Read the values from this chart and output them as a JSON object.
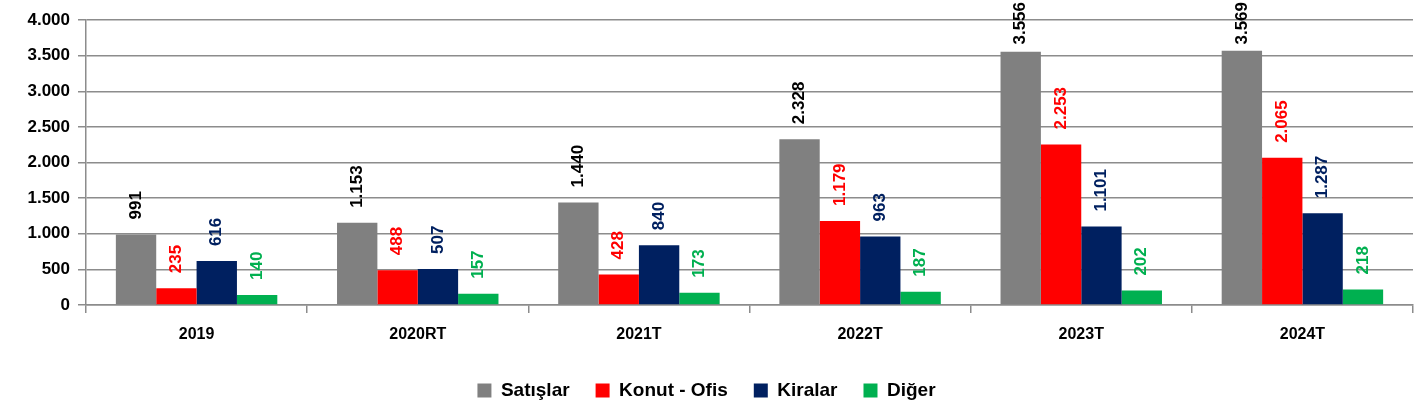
{
  "chart_data": {
    "type": "bar",
    "categories": [
      "2019",
      "2020RT",
      "2021T",
      "2022T",
      "2023T",
      "2024T"
    ],
    "series": [
      {
        "name": "Satışlar",
        "color": "#808080",
        "values": [
          991,
          1153,
          1440,
          2328,
          3556,
          3569
        ],
        "value_labels": [
          "991",
          "1.153",
          "1.440",
          "2.328",
          "3.556",
          "3.569"
        ]
      },
      {
        "name": "Konut - Ofis",
        "color": "#ff0000",
        "values": [
          235,
          488,
          428,
          1179,
          2253,
          2065
        ],
        "value_labels": [
          "235",
          "488",
          "428",
          "1.179",
          "2.253",
          "2.065"
        ]
      },
      {
        "name": "Kiralar",
        "color": "#002060",
        "values": [
          616,
          507,
          840,
          963,
          1101,
          1287
        ],
        "value_labels": [
          "616",
          "507",
          "840",
          "963",
          "1.101",
          "1.287"
        ]
      },
      {
        "name": "Diğer",
        "color": "#00b050",
        "values": [
          140,
          157,
          173,
          187,
          202,
          218
        ],
        "value_labels": [
          "140",
          "157",
          "173",
          "187",
          "202",
          "218"
        ]
      }
    ],
    "ylim": [
      0,
      4000
    ],
    "yticks": [
      0,
      500,
      {
        "value": 1000,
        "label": "1.000"
      },
      {
        "value": 1500,
        "label": "1.500"
      },
      {
        "value": 2000,
        "label": "2.000"
      },
      {
        "value": 2500,
        "label": "2.500"
      },
      {
        "value": 3000,
        "label": "3.000"
      },
      {
        "value": 3500,
        "label": "3.500"
      },
      {
        "value": 4000,
        "label": "4.000"
      }
    ],
    "grid": "y",
    "legend": "bottom"
  }
}
